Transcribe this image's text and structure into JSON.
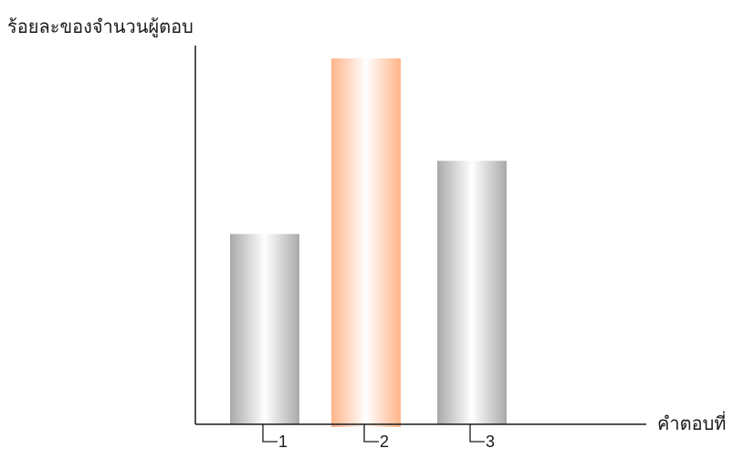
{
  "chart_data": {
    "type": "bar",
    "categories": [
      "1",
      "2",
      "3"
    ],
    "values": [
      52,
      100,
      72
    ],
    "ylim": [
      0,
      100
    ],
    "xlabel": "คำตอบที่",
    "ylabel": "ร้อยละของจำนวนผู้ตอบ",
    "grid": false,
    "bar_colors": [
      "#b4b4b4",
      "#ffb489",
      "#b4b4b4"
    ],
    "axis_color": "#1a1a1a"
  }
}
